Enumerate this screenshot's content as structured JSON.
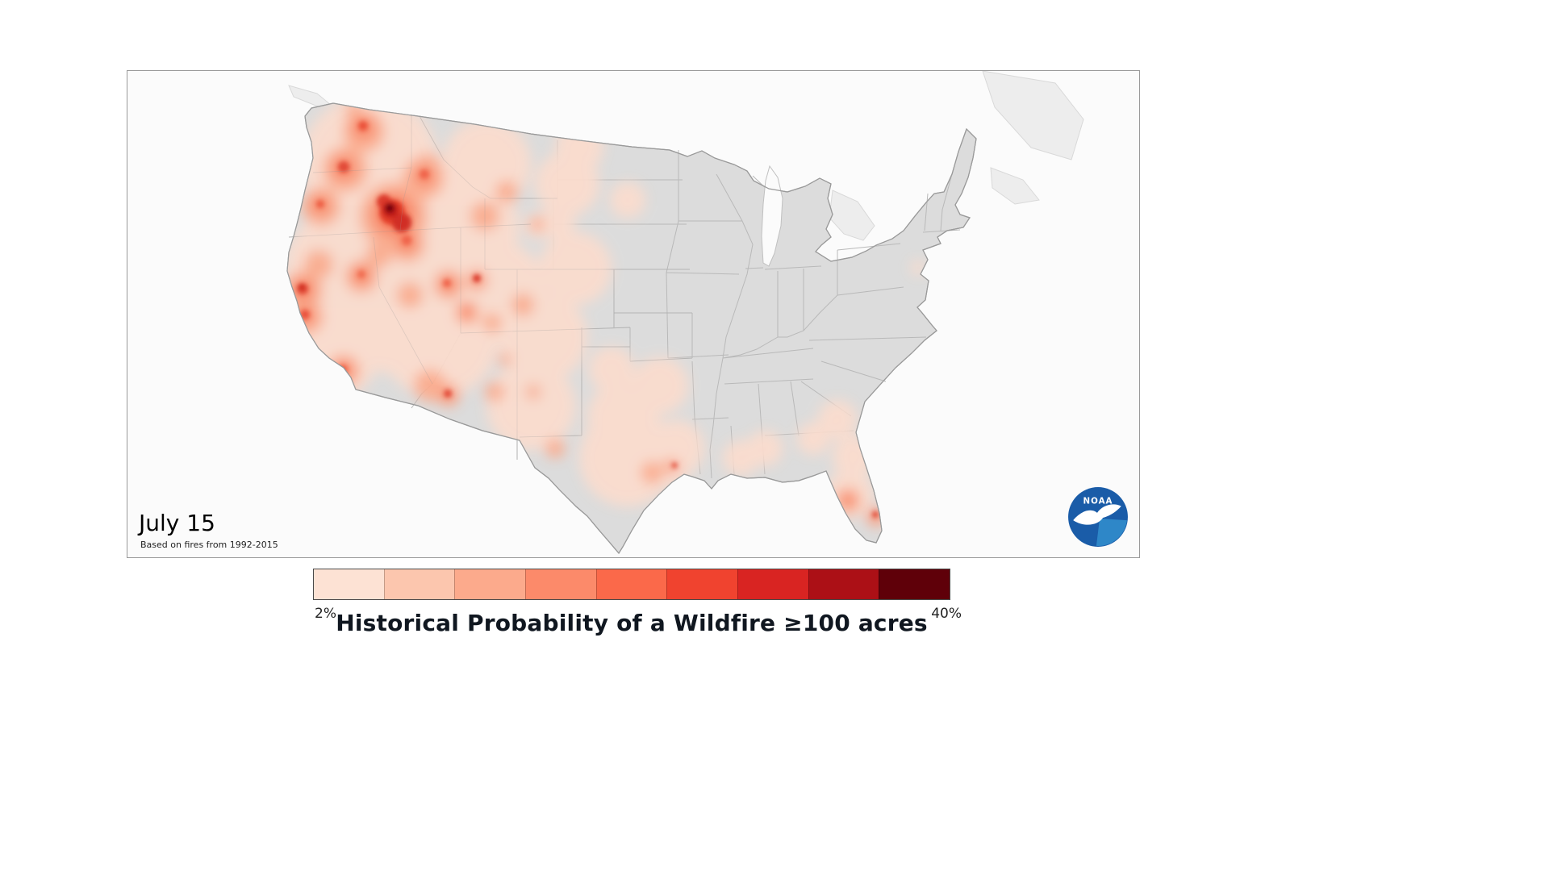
{
  "panel": {
    "date_label": "July 15",
    "source_note": "Based on fires from 1992-2015"
  },
  "legend": {
    "min_label": "2%",
    "max_label": "40%",
    "title": "Historical Probability of a Wildfire ≥100 acres",
    "colors": [
      "#fde2d4",
      "#fcc6ae",
      "#fcaa8c",
      "#fc8a6a",
      "#fb694a",
      "#f0432f",
      "#d92422",
      "#ac1016",
      "#5f0009"
    ]
  },
  "logo": {
    "label": "NOAA",
    "circle_color": "#1a5ca8",
    "accent_color": "#2e87c8"
  },
  "map": {
    "land_color": "#dcdcdc",
    "state_border_color": "#b9b9b9",
    "water_color": "#fbfbfb"
  }
}
